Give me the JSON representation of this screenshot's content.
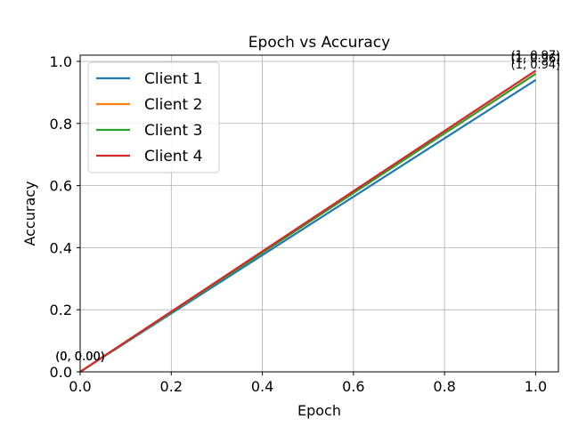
{
  "chart_data": {
    "type": "line",
    "title": "Epoch vs Accuracy",
    "xlabel": "Epoch",
    "ylabel": "Accuracy",
    "xlim": [
      0,
      1.05
    ],
    "ylim": [
      0,
      1.02
    ],
    "xticks": [
      0.0,
      0.2,
      0.4,
      0.6,
      0.8,
      1.0
    ],
    "yticks": [
      0.0,
      0.2,
      0.4,
      0.6,
      0.8,
      1.0
    ],
    "grid": true,
    "legend_position": "top-left",
    "series": [
      {
        "name": "Client 1",
        "color": "#1f77b4",
        "x": [
          0,
          1
        ],
        "y": [
          0.0,
          0.94
        ],
        "annotations": [
          "(0, 0.00)",
          "(1, 0.94)"
        ]
      },
      {
        "name": "Client 2",
        "color": "#ff7f0e",
        "x": [
          0,
          1
        ],
        "y": [
          0.0,
          0.96
        ],
        "annotations": [
          "(0, 0.00)",
          "(1, 0.96)"
        ]
      },
      {
        "name": "Client 3",
        "color": "#2ca02c",
        "x": [
          0,
          1
        ],
        "y": [
          0.0,
          0.96
        ],
        "annotations": [
          "(0, 0.00)",
          "(1, 0.96)"
        ]
      },
      {
        "name": "Client 4",
        "color": "#d62728",
        "x": [
          0,
          1
        ],
        "y": [
          0.0,
          0.97
        ],
        "annotations": [
          "(0, 0.00)",
          "(1, 0.97)"
        ]
      }
    ]
  }
}
